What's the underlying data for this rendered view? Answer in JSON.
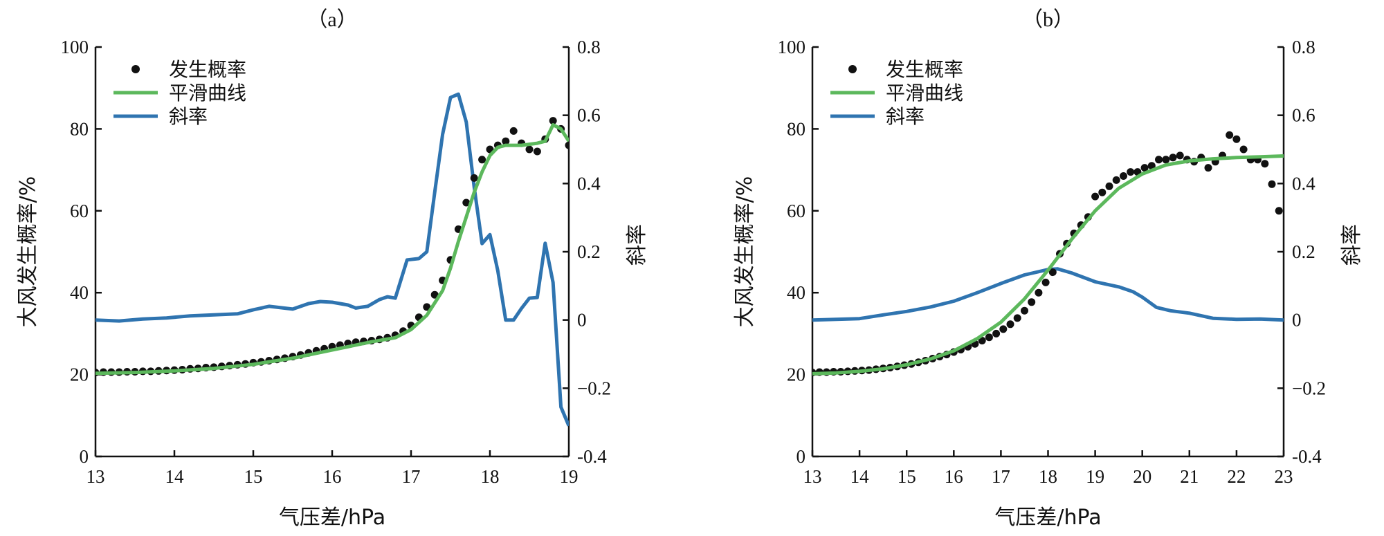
{
  "colors": {
    "points": "#111111",
    "smooth": "#5cb85c",
    "slope": "#2f74b0"
  },
  "chart_data": [
    {
      "type": "line",
      "panel_label": "（a）",
      "xlabel": "气压差/hPa",
      "ylabel": "大风发生概率/%",
      "y2label": "斜率",
      "xlim": [
        13,
        19
      ],
      "ylim": [
        0,
        100
      ],
      "y2lim": [
        -0.4,
        0.8
      ],
      "xticks": [
        "13",
        "14",
        "15",
        "16",
        "17",
        "18",
        "19"
      ],
      "yticks": [
        "0",
        "20",
        "40",
        "60",
        "80",
        "100"
      ],
      "y2ticks": [
        "-0.4",
        "−0.2",
        "0",
        "0.2",
        "0.4",
        "0.6",
        "0.8"
      ],
      "legend_position": "top-left",
      "legend": [
        "发生概率",
        "平滑曲线",
        "斜率"
      ],
      "series": [
        {
          "name": "发生概率",
          "kind": "scatter",
          "axis": "left",
          "x": [
            13.0,
            13.1,
            13.2,
            13.3,
            13.4,
            13.5,
            13.6,
            13.7,
            13.8,
            13.9,
            14.0,
            14.1,
            14.2,
            14.3,
            14.4,
            14.5,
            14.6,
            14.7,
            14.8,
            14.9,
            15.0,
            15.1,
            15.2,
            15.3,
            15.4,
            15.5,
            15.6,
            15.7,
            15.8,
            15.9,
            16.0,
            16.1,
            16.2,
            16.3,
            16.4,
            16.5,
            16.6,
            16.7,
            16.8,
            16.9,
            17.0,
            17.1,
            17.2,
            17.3,
            17.4,
            17.5,
            17.6,
            17.7,
            17.8,
            17.9,
            18.0,
            18.1,
            18.2,
            18.3,
            18.4,
            18.5,
            18.6,
            18.7,
            18.8,
            18.9,
            19.0
          ],
          "values": [
            20.5,
            20.6,
            20.6,
            20.6,
            20.7,
            20.7,
            20.8,
            20.8,
            20.9,
            21.0,
            21.1,
            21.2,
            21.4,
            21.5,
            21.7,
            21.8,
            22.0,
            22.2,
            22.4,
            22.6,
            22.9,
            23.1,
            23.4,
            23.7,
            24.0,
            24.4,
            24.8,
            25.3,
            25.8,
            26.3,
            26.8,
            27.2,
            27.6,
            27.9,
            28.1,
            28.3,
            28.6,
            29.0,
            29.6,
            30.6,
            32.0,
            34.0,
            36.5,
            39.5,
            43.0,
            48.0,
            55.5,
            62.0,
            68.0,
            72.5,
            75.0,
            76.0,
            77.0,
            79.5,
            76.5,
            75.0,
            74.5,
            77.5,
            82.0,
            80.0,
            76.0
          ]
        },
        {
          "name": "平滑曲线",
          "kind": "line",
          "axis": "left",
          "x": [
            13.0,
            13.5,
            14.0,
            14.5,
            15.0,
            15.5,
            16.0,
            16.5,
            16.8,
            17.0,
            17.2,
            17.4,
            17.5,
            17.6,
            17.7,
            17.8,
            17.9,
            18.0,
            18.1,
            18.2,
            18.4,
            18.6,
            18.7,
            18.8,
            18.9,
            19.0
          ],
          "values": [
            20.3,
            20.5,
            20.9,
            21.5,
            22.5,
            24.0,
            26.0,
            28.0,
            29.0,
            31.0,
            34.5,
            40.5,
            46.0,
            52.5,
            58.5,
            64.5,
            69.5,
            73.5,
            75.5,
            76.0,
            76.0,
            76.5,
            77.0,
            81.0,
            80.0,
            77.0
          ]
        },
        {
          "name": "斜率",
          "kind": "line",
          "axis": "right",
          "x": [
            13.0,
            13.3,
            13.6,
            13.9,
            14.2,
            14.5,
            14.8,
            15.0,
            15.2,
            15.35,
            15.5,
            15.7,
            15.85,
            16.0,
            16.2,
            16.3,
            16.45,
            16.6,
            16.7,
            16.8,
            16.95,
            17.1,
            17.2,
            17.3,
            17.4,
            17.5,
            17.6,
            17.7,
            17.8,
            17.9,
            18.0,
            18.1,
            18.2,
            18.3,
            18.4,
            18.5,
            18.6,
            18.7,
            18.8,
            18.9,
            19.0
          ],
          "values": [
            0.0,
            -0.003,
            0.003,
            0.006,
            0.012,
            0.015,
            0.018,
            0.03,
            0.04,
            0.036,
            0.032,
            0.048,
            0.054,
            0.052,
            0.044,
            0.035,
            0.04,
            0.06,
            0.068,
            0.064,
            0.176,
            0.18,
            0.2,
            0.374,
            0.544,
            0.652,
            0.662,
            0.58,
            0.39,
            0.224,
            0.25,
            0.144,
            0.0,
            0.0,
            0.034,
            0.064,
            0.066,
            0.225,
            0.11,
            -0.255,
            -0.31
          ]
        }
      ]
    },
    {
      "type": "line",
      "panel_label": "（b）",
      "xlabel": "气压差/hPa",
      "ylabel": "大风发生概率/%",
      "y2label": "斜率",
      "xlim": [
        13,
        23
      ],
      "ylim": [
        0,
        100
      ],
      "y2lim": [
        -0.4,
        0.8
      ],
      "xticks": [
        "13",
        "14",
        "15",
        "16",
        "17",
        "18",
        "19",
        "20",
        "21",
        "22",
        "23"
      ],
      "yticks": [
        "0",
        "20",
        "40",
        "60",
        "80",
        "100"
      ],
      "y2ticks": [
        "-0.4",
        "−0.2",
        "0",
        "0.2",
        "0.4",
        "0.6",
        "0.8"
      ],
      "legend_position": "top-left",
      "legend": [
        "发生概率",
        "平滑曲线",
        "斜率"
      ],
      "series": [
        {
          "name": "发生概率",
          "kind": "scatter",
          "axis": "left",
          "x": [
            13.0,
            13.15,
            13.3,
            13.45,
            13.6,
            13.75,
            13.9,
            14.05,
            14.2,
            14.35,
            14.5,
            14.65,
            14.8,
            14.95,
            15.1,
            15.25,
            15.4,
            15.55,
            15.7,
            15.85,
            16.0,
            16.15,
            16.3,
            16.45,
            16.6,
            16.75,
            16.9,
            17.05,
            17.2,
            17.35,
            17.5,
            17.65,
            17.8,
            17.95,
            18.1,
            18.25,
            18.4,
            18.55,
            18.7,
            18.85,
            19.0,
            19.15,
            19.3,
            19.45,
            19.6,
            19.75,
            19.9,
            20.05,
            20.2,
            20.35,
            20.5,
            20.65,
            20.8,
            20.95,
            21.1,
            21.25,
            21.4,
            21.55,
            21.7,
            21.85,
            22.0,
            22.15,
            22.3,
            22.45,
            22.6,
            22.75,
            22.9
          ],
          "values": [
            20.5,
            20.6,
            20.6,
            20.7,
            20.7,
            20.8,
            20.9,
            21.0,
            21.1,
            21.3,
            21.5,
            21.7,
            22.0,
            22.3,
            22.6,
            23.0,
            23.4,
            23.9,
            24.4,
            24.9,
            25.5,
            26.1,
            26.8,
            27.5,
            28.3,
            29.1,
            30.0,
            31.1,
            32.3,
            33.8,
            35.6,
            37.7,
            40.0,
            42.5,
            45.0,
            49.5,
            52.0,
            54.5,
            56.5,
            58.5,
            63.5,
            64.5,
            66.0,
            67.5,
            68.5,
            69.5,
            69.5,
            70.5,
            71.0,
            72.5,
            72.5,
            73.0,
            73.5,
            72.5,
            72.0,
            73.0,
            70.5,
            72.0,
            73.5,
            78.5,
            77.5,
            75.0,
            72.5,
            72.5,
            71.5,
            66.5,
            60.0
          ]
        },
        {
          "name": "平滑曲线",
          "kind": "line",
          "axis": "left",
          "x": [
            13.0,
            13.5,
            14.0,
            14.5,
            15.0,
            15.5,
            16.0,
            16.5,
            17.0,
            17.5,
            18.0,
            18.5,
            19.0,
            19.5,
            20.0,
            20.5,
            21.0,
            21.5,
            22.0,
            22.5,
            23.0
          ],
          "values": [
            20.2,
            20.4,
            20.8,
            21.4,
            22.4,
            23.8,
            25.8,
            28.8,
            32.8,
            38.5,
            45.5,
            53.0,
            60.0,
            65.5,
            69.0,
            71.2,
            72.2,
            72.7,
            73.0,
            73.2,
            73.4
          ]
        },
        {
          "name": "斜率",
          "kind": "line",
          "axis": "right",
          "x": [
            13.0,
            13.5,
            14.0,
            14.5,
            15.0,
            15.5,
            16.0,
            16.5,
            17.0,
            17.5,
            18.0,
            18.2,
            18.5,
            19.0,
            19.5,
            19.8,
            20.0,
            20.3,
            20.6,
            21.0,
            21.5,
            22.0,
            22.5,
            23.0
          ],
          "values": [
            0.0,
            0.002,
            0.004,
            0.015,
            0.025,
            0.038,
            0.055,
            0.08,
            0.107,
            0.132,
            0.148,
            0.15,
            0.138,
            0.112,
            0.097,
            0.083,
            0.067,
            0.037,
            0.027,
            0.02,
            0.005,
            0.002,
            0.003,
            0.0
          ]
        }
      ]
    }
  ]
}
